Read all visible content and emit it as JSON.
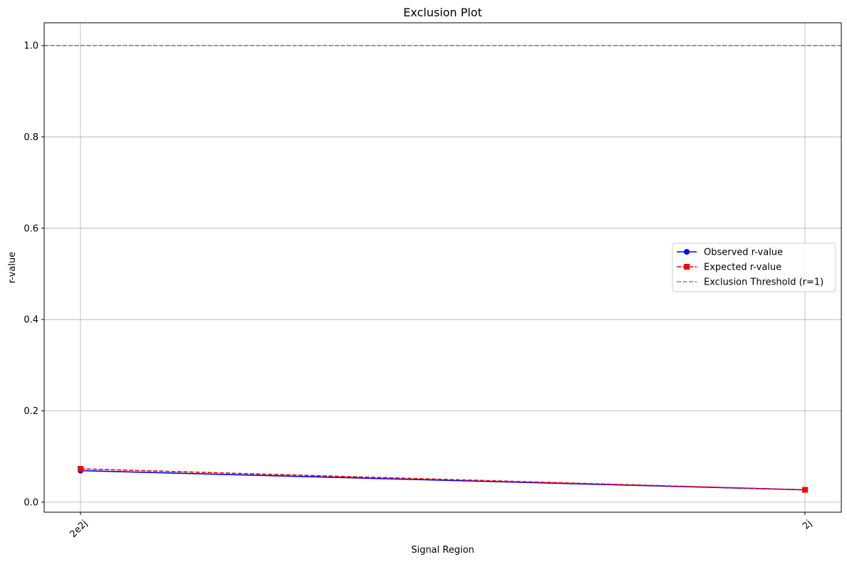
{
  "chart_data": {
    "type": "line",
    "title": "Exclusion Plot",
    "xlabel": "Signal Region",
    "ylabel": "r-value",
    "categories": [
      "2e2j",
      "2j"
    ],
    "series": [
      {
        "name": "Observed r-value",
        "values": [
          0.069,
          0.027
        ],
        "color": "#0000ff",
        "marker": "circle",
        "linestyle": "solid"
      },
      {
        "name": "Expected r-value",
        "values": [
          0.073,
          0.027
        ],
        "color": "#ff0000",
        "marker": "square",
        "linestyle": "dashed"
      }
    ],
    "threshold": {
      "name": "Exclusion Threshold (r=1)",
      "value": 1.0,
      "color": "#808080",
      "linestyle": "dashed"
    },
    "ylim": [
      -0.022,
      1.05
    ],
    "yticks": [
      0.0,
      0.2,
      0.4,
      0.6,
      0.8,
      1.0
    ],
    "ytick_labels": [
      "0.0",
      "0.2",
      "0.4",
      "0.6",
      "0.8",
      "1.0"
    ],
    "grid": true,
    "legend_position": "center-right",
    "xtick_rotation": 45
  }
}
